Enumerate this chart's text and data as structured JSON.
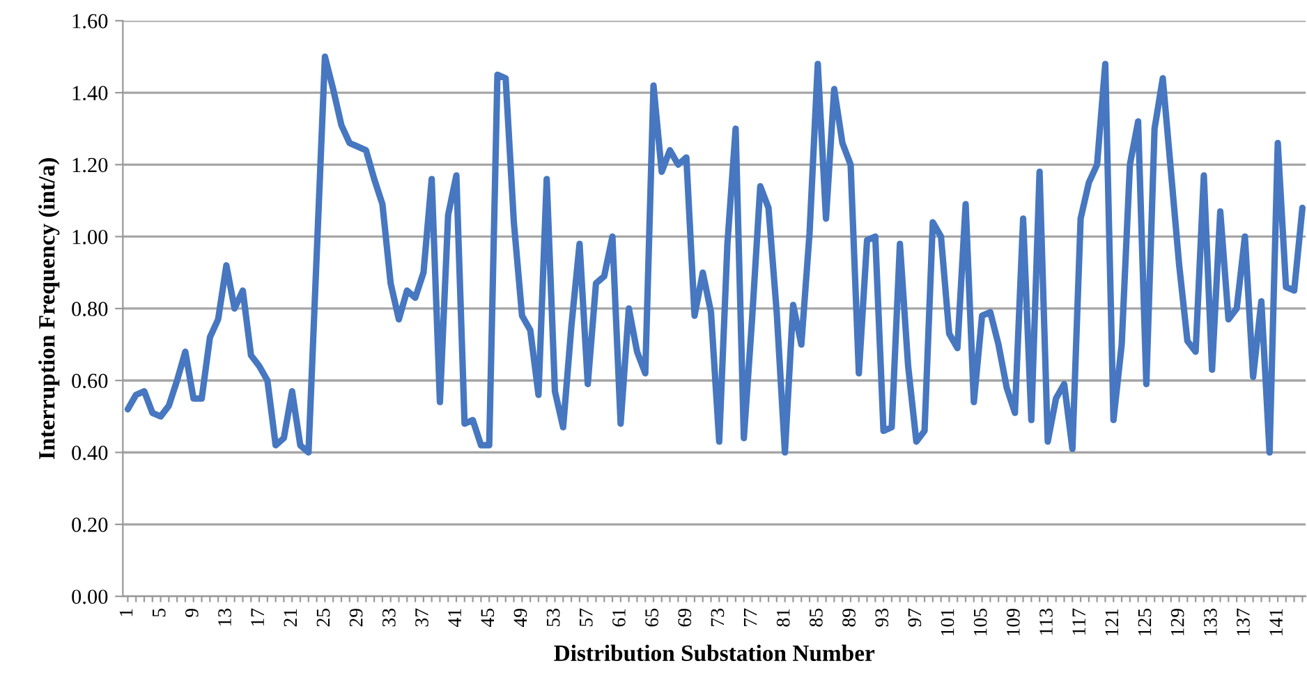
{
  "chart_data": {
    "type": "line",
    "xlabel": "Distribution Substation Number",
    "ylabel": "Interruption Frequency (int/a)",
    "categories": [
      "1",
      null,
      null,
      null,
      "5",
      null,
      null,
      null,
      "9",
      null,
      null,
      null,
      "13",
      null,
      null,
      null,
      "17",
      null,
      null,
      null,
      "21",
      null,
      null,
      null,
      "25",
      null,
      null,
      null,
      "29",
      null,
      null,
      null,
      "33",
      null,
      null,
      null,
      "37",
      null,
      null,
      null,
      "41",
      null,
      null,
      null,
      "45",
      null,
      null,
      null,
      "49",
      null,
      null,
      null,
      "53",
      null,
      null,
      null,
      "57",
      null,
      null,
      null,
      "61",
      null,
      null,
      null,
      "65",
      null,
      null,
      null,
      "69",
      null,
      null,
      null,
      "73",
      null,
      null,
      null,
      "77",
      null,
      null,
      null,
      "81",
      null,
      null,
      null,
      "85",
      null,
      null,
      null,
      "89",
      null,
      null,
      null,
      "93",
      null,
      null,
      null,
      "97",
      null,
      null,
      null,
      "101",
      null,
      null,
      null,
      "105",
      null,
      null,
      null,
      "109",
      null,
      null,
      null,
      "113",
      null,
      null,
      null,
      "117",
      null,
      null,
      null,
      "121",
      null,
      null,
      null,
      "125",
      null,
      null,
      null,
      "129",
      null,
      null,
      null,
      "133",
      null,
      null,
      null,
      "137",
      null,
      null,
      null,
      "141",
      null,
      null,
      null
    ],
    "series": [
      {
        "color": "#4677c0",
        "values": [
          0.52,
          0.56,
          0.57,
          0.51,
          0.5,
          0.53,
          0.6,
          0.68,
          0.55,
          0.55,
          0.72,
          0.77,
          0.92,
          0.8,
          0.85,
          0.67,
          0.64,
          0.6,
          0.42,
          0.44,
          0.57,
          0.42,
          0.4,
          0.95,
          1.5,
          1.41,
          1.31,
          1.26,
          1.25,
          1.24,
          1.16,
          1.09,
          0.87,
          0.77,
          0.85,
          0.83,
          0.9,
          1.16,
          0.54,
          1.06,
          1.17,
          0.48,
          0.49,
          0.42,
          0.42,
          1.45,
          1.44,
          1.04,
          0.78,
          0.74,
          0.56,
          1.16,
          0.57,
          0.47,
          0.75,
          0.98,
          0.59,
          0.87,
          0.89,
          1.0,
          0.48,
          0.8,
          0.68,
          0.62,
          1.42,
          1.18,
          1.24,
          1.2,
          1.22,
          0.78,
          0.9,
          0.79,
          0.43,
          0.98,
          1.3,
          0.44,
          0.77,
          1.14,
          1.08,
          0.79,
          0.4,
          0.81,
          0.7,
          1.01,
          1.48,
          1.05,
          1.41,
          1.26,
          1.2,
          0.62,
          0.99,
          1.0,
          0.46,
          0.47,
          0.98,
          0.64,
          0.43,
          0.46,
          1.04,
          1.0,
          0.73,
          0.69,
          1.09,
          0.54,
          0.78,
          0.79,
          0.7,
          0.58,
          0.51,
          1.05,
          0.49,
          1.18,
          0.43,
          0.55,
          0.59,
          0.41,
          1.05,
          1.15,
          1.2,
          1.48,
          0.49,
          0.7,
          1.2,
          1.32,
          0.59,
          1.3,
          1.44,
          1.18,
          0.92,
          0.71,
          0.68,
          1.17,
          0.63,
          1.07,
          0.77,
          0.8,
          1.0,
          0.61,
          0.82,
          0.4,
          1.26,
          0.86,
          0.85,
          1.08
        ]
      }
    ],
    "ylim": [
      0,
      1.6
    ],
    "yticks": [
      {
        "value": 0,
        "label": "0.00"
      },
      {
        "value": 0.2,
        "label": "0.20"
      },
      {
        "value": 0.4,
        "label": "0.40"
      },
      {
        "value": 0.6,
        "label": "0.60"
      },
      {
        "value": 0.8,
        "label": "0.80"
      },
      {
        "value": 1.0,
        "label": "1.00"
      },
      {
        "value": 1.2,
        "label": "1.20"
      },
      {
        "value": 1.4,
        "label": "1.40"
      },
      {
        "value": 1.6,
        "label": "1.60"
      }
    ],
    "grid": "y",
    "marker": "none",
    "line_style": "solid"
  }
}
